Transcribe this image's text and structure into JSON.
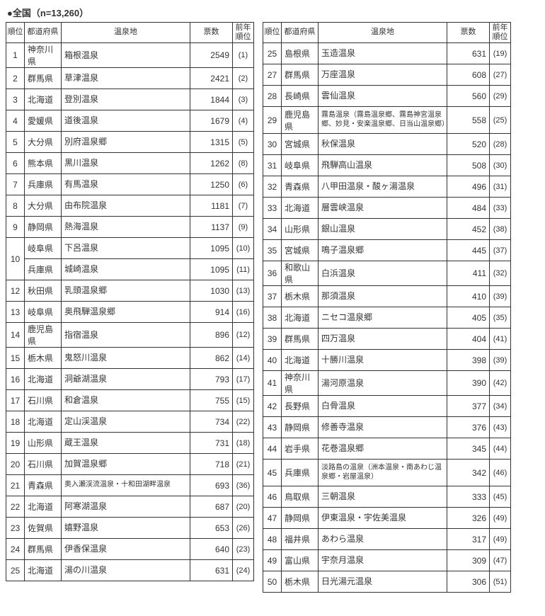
{
  "title": "●全国（n=13,260）",
  "headers": {
    "rank": "順位",
    "pref": "都道府県",
    "name": "温泉地",
    "votes": "票数",
    "prev": "前年\n順位"
  },
  "tie_rank": "10",
  "left": [
    {
      "rank": "1",
      "pref": "神奈川県",
      "name": "箱根温泉",
      "votes": "2549",
      "prev": "(1)"
    },
    {
      "rank": "2",
      "pref": "群馬県",
      "name": "草津温泉",
      "votes": "2421",
      "prev": "(2)"
    },
    {
      "rank": "3",
      "pref": "北海道",
      "name": "登別温泉",
      "votes": "1844",
      "prev": "(3)"
    },
    {
      "rank": "4",
      "pref": "愛媛県",
      "name": "道後温泉",
      "votes": "1679",
      "prev": "(4)"
    },
    {
      "rank": "5",
      "pref": "大分県",
      "name": "別府温泉郷",
      "votes": "1315",
      "prev": "(5)"
    },
    {
      "rank": "6",
      "pref": "熊本県",
      "name": "黒川温泉",
      "votes": "1262",
      "prev": "(8)"
    },
    {
      "rank": "7",
      "pref": "兵庫県",
      "name": "有馬温泉",
      "votes": "1250",
      "prev": "(6)"
    },
    {
      "rank": "8",
      "pref": "大分県",
      "name": "由布院温泉",
      "votes": "1181",
      "prev": "(7)"
    },
    {
      "rank": "9",
      "pref": "静岡県",
      "name": "熱海温泉",
      "votes": "1137",
      "prev": "(9)"
    },
    {
      "rank": "",
      "pref": "岐阜県",
      "name": "下呂温泉",
      "votes": "1095",
      "prev": "(10)"
    },
    {
      "rank": "",
      "pref": "兵庫県",
      "name": "城崎温泉",
      "votes": "1095",
      "prev": "(11)"
    },
    {
      "rank": "12",
      "pref": "秋田県",
      "name": "乳頭温泉郷",
      "votes": "1030",
      "prev": "(13)"
    },
    {
      "rank": "13",
      "pref": "岐阜県",
      "name": "奥飛騨温泉郷",
      "votes": "914",
      "prev": "(16)"
    },
    {
      "rank": "14",
      "pref": "鹿児島県",
      "name": "指宿温泉",
      "votes": "896",
      "prev": "(12)"
    },
    {
      "rank": "15",
      "pref": "栃木県",
      "name": "鬼怒川温泉",
      "votes": "862",
      "prev": "(14)"
    },
    {
      "rank": "16",
      "pref": "北海道",
      "name": "洞爺湖温泉",
      "votes": "793",
      "prev": "(17)"
    },
    {
      "rank": "17",
      "pref": "石川県",
      "name": "和倉温泉",
      "votes": "755",
      "prev": "(15)"
    },
    {
      "rank": "18",
      "pref": "北海道",
      "name": "定山渓温泉",
      "votes": "734",
      "prev": "(22)"
    },
    {
      "rank": "19",
      "pref": "山形県",
      "name": "蔵王温泉",
      "votes": "731",
      "prev": "(18)"
    },
    {
      "rank": "20",
      "pref": "石川県",
      "name": "加賀温泉郷",
      "votes": "718",
      "prev": "(21)"
    },
    {
      "rank": "21",
      "pref": "青森県",
      "name": "奥入瀬渓流温泉・十和田湖畔温泉",
      "votes": "693",
      "prev": "(36)",
      "small": true
    },
    {
      "rank": "22",
      "pref": "北海道",
      "name": "阿寒湖温泉",
      "votes": "687",
      "prev": "(20)"
    },
    {
      "rank": "23",
      "pref": "佐賀県",
      "name": "嬉野温泉",
      "votes": "653",
      "prev": "(26)"
    },
    {
      "rank": "24",
      "pref": "群馬県",
      "name": "伊香保温泉",
      "votes": "640",
      "prev": "(23)"
    },
    {
      "rank": "25",
      "pref": "北海道",
      "name": "湯の川温泉",
      "votes": "631",
      "prev": "(24)"
    }
  ],
  "right": [
    {
      "rank": "25",
      "pref": "島根県",
      "name": "玉造温泉",
      "votes": "631",
      "prev": "(19)"
    },
    {
      "rank": "27",
      "pref": "群馬県",
      "name": "万座温泉",
      "votes": "608",
      "prev": "(27)"
    },
    {
      "rank": "28",
      "pref": "長崎県",
      "name": "雲仙温泉",
      "votes": "560",
      "prev": "(29)"
    },
    {
      "rank": "29",
      "pref": "鹿児島県",
      "name": "霧島温泉（霧島温泉郷、霧島神宮温泉郷、妙見・安楽温泉郷、日当山温泉郷）",
      "votes": "558",
      "prev": "(25)",
      "small": true,
      "tall": true
    },
    {
      "rank": "30",
      "pref": "宮城県",
      "name": "秋保温泉",
      "votes": "520",
      "prev": "(28)"
    },
    {
      "rank": "31",
      "pref": "岐阜県",
      "name": "飛騨高山温泉",
      "votes": "508",
      "prev": "(30)"
    },
    {
      "rank": "32",
      "pref": "青森県",
      "name": "八甲田温泉・酸ヶ湯温泉",
      "votes": "496",
      "prev": "(31)"
    },
    {
      "rank": "33",
      "pref": "北海道",
      "name": "層雲峡温泉",
      "votes": "484",
      "prev": "(33)"
    },
    {
      "rank": "34",
      "pref": "山形県",
      "name": "銀山温泉",
      "votes": "452",
      "prev": "(38)"
    },
    {
      "rank": "35",
      "pref": "宮城県",
      "name": "鳴子温泉郷",
      "votes": "445",
      "prev": "(37)"
    },
    {
      "rank": "36",
      "pref": "和歌山県",
      "name": "白浜温泉",
      "votes": "411",
      "prev": "(32)"
    },
    {
      "rank": "37",
      "pref": "栃木県",
      "name": "那須温泉",
      "votes": "410",
      "prev": "(39)"
    },
    {
      "rank": "38",
      "pref": "北海道",
      "name": "ニセコ温泉郷",
      "votes": "405",
      "prev": "(35)"
    },
    {
      "rank": "39",
      "pref": "群馬県",
      "name": "四万温泉",
      "votes": "404",
      "prev": "(41)"
    },
    {
      "rank": "40",
      "pref": "北海道",
      "name": "十勝川温泉",
      "votes": "398",
      "prev": "(39)"
    },
    {
      "rank": "41",
      "pref": "神奈川県",
      "name": "湯河原温泉",
      "votes": "390",
      "prev": "(42)"
    },
    {
      "rank": "42",
      "pref": "長野県",
      "name": "白骨温泉",
      "votes": "377",
      "prev": "(34)"
    },
    {
      "rank": "43",
      "pref": "静岡県",
      "name": "修善寺温泉",
      "votes": "376",
      "prev": "(43)"
    },
    {
      "rank": "44",
      "pref": "岩手県",
      "name": "花巻温泉郷",
      "votes": "345",
      "prev": "(44)"
    },
    {
      "rank": "45",
      "pref": "兵庫県",
      "name": "淡路島の温泉（洲本温泉・南あわじ温泉郷・岩屋温泉）",
      "votes": "342",
      "prev": "(46)",
      "small": true,
      "tall": true
    },
    {
      "rank": "46",
      "pref": "鳥取県",
      "name": "三朝温泉",
      "votes": "333",
      "prev": "(45)"
    },
    {
      "rank": "47",
      "pref": "静岡県",
      "name": "伊東温泉・宇佐美温泉",
      "votes": "326",
      "prev": "(49)"
    },
    {
      "rank": "48",
      "pref": "福井県",
      "name": "あわら温泉",
      "votes": "317",
      "prev": "(49)"
    },
    {
      "rank": "49",
      "pref": "富山県",
      "name": "宇奈月温泉",
      "votes": "309",
      "prev": "(47)"
    },
    {
      "rank": "50",
      "pref": "栃木県",
      "name": "日光湯元温泉",
      "votes": "306",
      "prev": "(51)"
    }
  ]
}
